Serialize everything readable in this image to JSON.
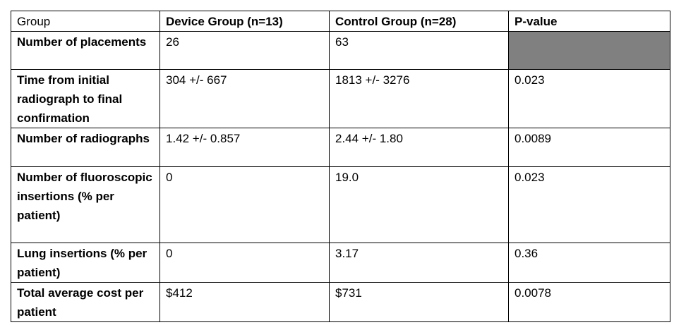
{
  "table": {
    "header": [
      "Group",
      "Device Group (n=13)",
      "Control Group (n=28)",
      "P-value"
    ],
    "rows": [
      {
        "label": "Number of placements",
        "device": "26",
        "control": "63"
      },
      {
        "label": "Time from initial radiograph to final confirmation",
        "device": "304 +/- 667",
        "control": "1813 +/- 3276",
        "p_value": "0.023"
      },
      {
        "label": "Number of radiographs",
        "device": "1.42 +/- 0.857",
        "control": "2.44 +/- 1.80",
        "p_value": "0.0089"
      },
      {
        "label": "Number of fluoroscopic insertions (% per patient)",
        "device": "0",
        "control": "19.0",
        "p_value": "0.023"
      },
      {
        "label": "Lung insertions (% per patient)",
        "device": "0",
        "control": "3.17",
        "p_value": "0.36"
      },
      {
        "label": "Total average cost per patient",
        "device": "$412",
        "control": "$731",
        "p_value": "0.0078"
      }
    ]
  }
}
